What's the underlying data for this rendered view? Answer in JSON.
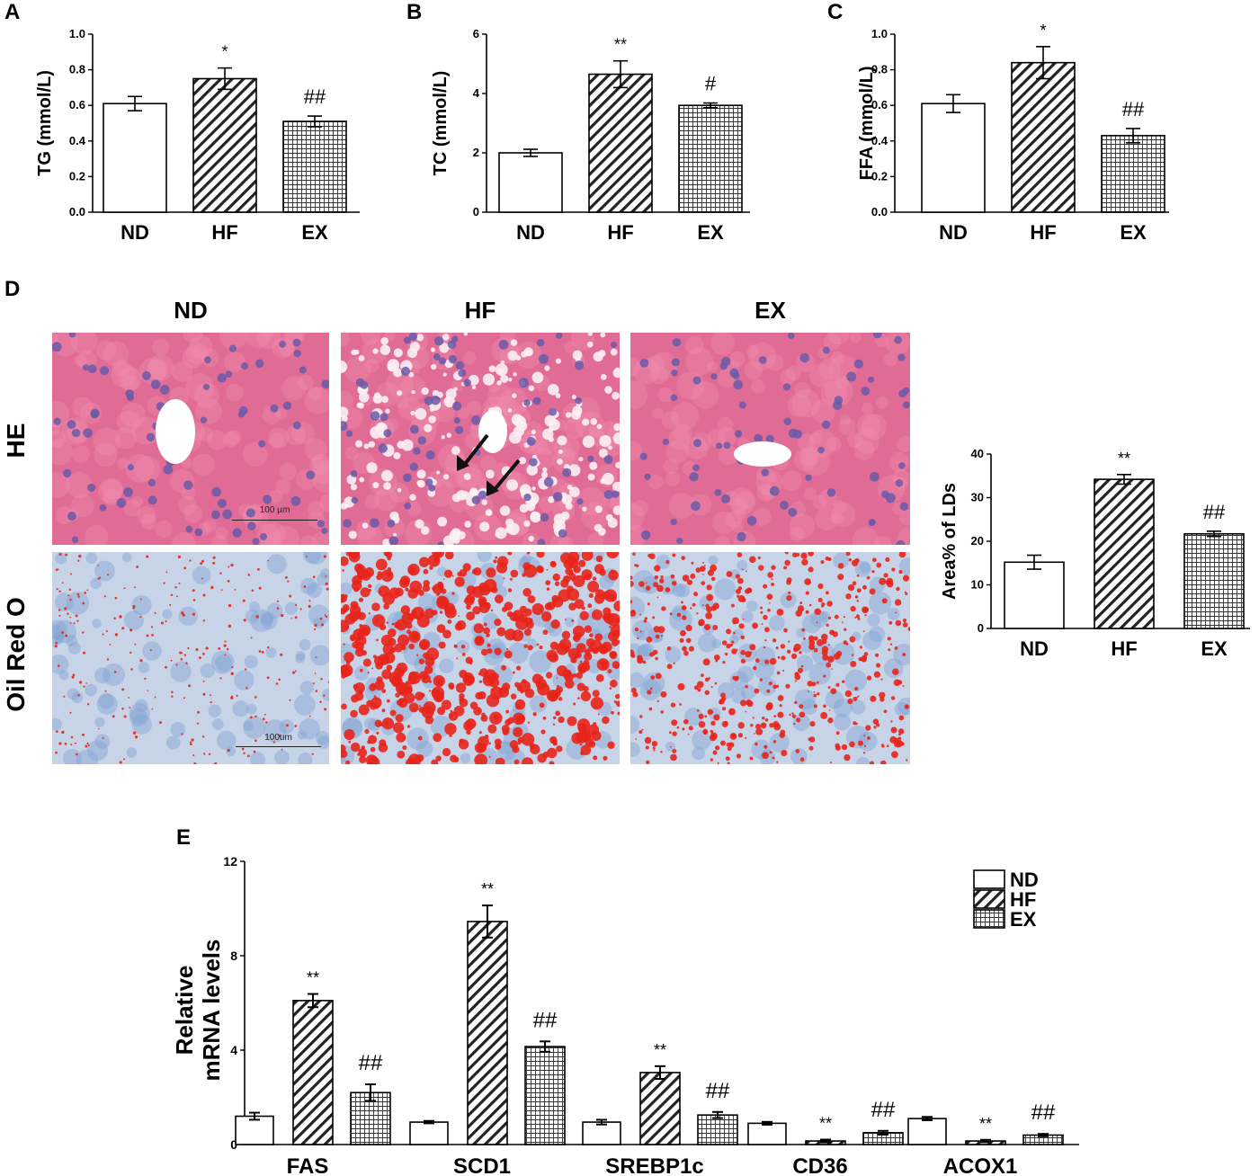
{
  "panel_letters": {
    "a": "A",
    "b": "B",
    "c": "C",
    "d": "D",
    "e": "E"
  },
  "histology": {
    "columns": [
      "ND",
      "HF",
      "EX"
    ],
    "rows": [
      "HE",
      "Oil Red O"
    ],
    "scale_bars": [
      "100 µm",
      "100um"
    ],
    "colors": {
      "he_bg": "#e06c96",
      "he_nuclei": "#6a5aa8",
      "oil_bg": "#c7d3e6",
      "oil_nuclei": "#7d9fd2",
      "lipid": "#e8231a"
    }
  },
  "chart_data": [
    {
      "id": "A",
      "type": "bar",
      "categories": [
        "ND",
        "HF",
        "EX"
      ],
      "values": [
        0.61,
        0.75,
        0.51
      ],
      "errors": [
        0.04,
        0.06,
        0.03
      ],
      "annotations": [
        "",
        "*",
        "##"
      ],
      "patterns": [
        "none",
        "diag",
        "grid"
      ],
      "ylabel": "TG (mmol/L)",
      "xlabel": "",
      "ylim": [
        0,
        1.0
      ],
      "yticks": [
        "0.0",
        "0.2",
        "0.4",
        "0.6",
        "0.8",
        "1.0"
      ],
      "tickvals": [
        0,
        0.2,
        0.4,
        0.6,
        0.8,
        1.0
      ]
    },
    {
      "id": "B",
      "type": "bar",
      "categories": [
        "ND",
        "HF",
        "EX"
      ],
      "values": [
        2.0,
        4.65,
        3.6
      ],
      "errors": [
        0.12,
        0.45,
        0.08
      ],
      "annotations": [
        "",
        "**",
        "#"
      ],
      "patterns": [
        "none",
        "diag",
        "grid"
      ],
      "ylabel": "TC (mmol/L)",
      "xlabel": "",
      "ylim": [
        0,
        6
      ],
      "yticks": [
        "0",
        "2",
        "4",
        "6"
      ],
      "tickvals": [
        0,
        2,
        4,
        6
      ]
    },
    {
      "id": "C",
      "type": "bar",
      "categories": [
        "ND",
        "HF",
        "EX"
      ],
      "values": [
        0.61,
        0.84,
        0.43
      ],
      "errors": [
        0.05,
        0.09,
        0.04
      ],
      "annotations": [
        "",
        "*",
        "##"
      ],
      "patterns": [
        "none",
        "diag",
        "grid"
      ],
      "ylabel": "FFA (mmol/L)",
      "xlabel": "",
      "ylim": [
        0,
        1.0
      ],
      "yticks": [
        "0.0",
        "0.2",
        "0.4",
        "0.6",
        "0.8",
        "1.0"
      ],
      "tickvals": [
        0,
        0.2,
        0.4,
        0.6,
        0.8,
        1.0
      ]
    },
    {
      "id": "D",
      "type": "bar",
      "categories": [
        "ND",
        "HF",
        "EX"
      ],
      "values": [
        15.2,
        34.2,
        21.7
      ],
      "errors": [
        1.6,
        1.1,
        0.6
      ],
      "annotations": [
        "",
        "**",
        "##"
      ],
      "patterns": [
        "none",
        "diag",
        "grid"
      ],
      "ylabel": "Area% of LDs",
      "xlabel": "",
      "ylim": [
        0,
        40
      ],
      "yticks": [
        "0",
        "10",
        "20",
        "30",
        "40"
      ],
      "tickvals": [
        0,
        10,
        20,
        30,
        40
      ]
    },
    {
      "id": "E",
      "type": "bar",
      "categories": [
        "FAS",
        "SCD1",
        "SREBP1c",
        "CD36",
        "ACOX1"
      ],
      "series": [
        {
          "name": "ND",
          "pattern": "none",
          "values": [
            1.2,
            0.95,
            0.95,
            0.9,
            1.1
          ],
          "errors": [
            0.15,
            0.05,
            0.1,
            0.06,
            0.07
          ],
          "annotations": [
            "",
            "",
            "",
            "",
            ""
          ]
        },
        {
          "name": "HF",
          "pattern": "diag",
          "values": [
            6.1,
            9.45,
            3.05,
            0.15,
            0.15
          ],
          "errors": [
            0.28,
            0.68,
            0.27,
            0.06,
            0.05
          ],
          "annotations": [
            "**",
            "**",
            "**",
            "**",
            "**"
          ]
        },
        {
          "name": "EX",
          "pattern": "grid",
          "values": [
            2.2,
            4.15,
            1.25,
            0.5,
            0.4
          ],
          "errors": [
            0.35,
            0.22,
            0.13,
            0.08,
            0.05
          ],
          "annotations": [
            "##",
            "##",
            "##",
            "##",
            "##"
          ]
        }
      ],
      "ylabel": "Relative mRNA levels",
      "ylabel_lines": [
        "Relative",
        "mRNA levels"
      ],
      "xlabel": "",
      "ylim": [
        0,
        12
      ],
      "yticks": [
        "0",
        "4",
        "8",
        "12"
      ],
      "tickvals": [
        0,
        4,
        8,
        12
      ],
      "legend_position": "top-right"
    }
  ]
}
